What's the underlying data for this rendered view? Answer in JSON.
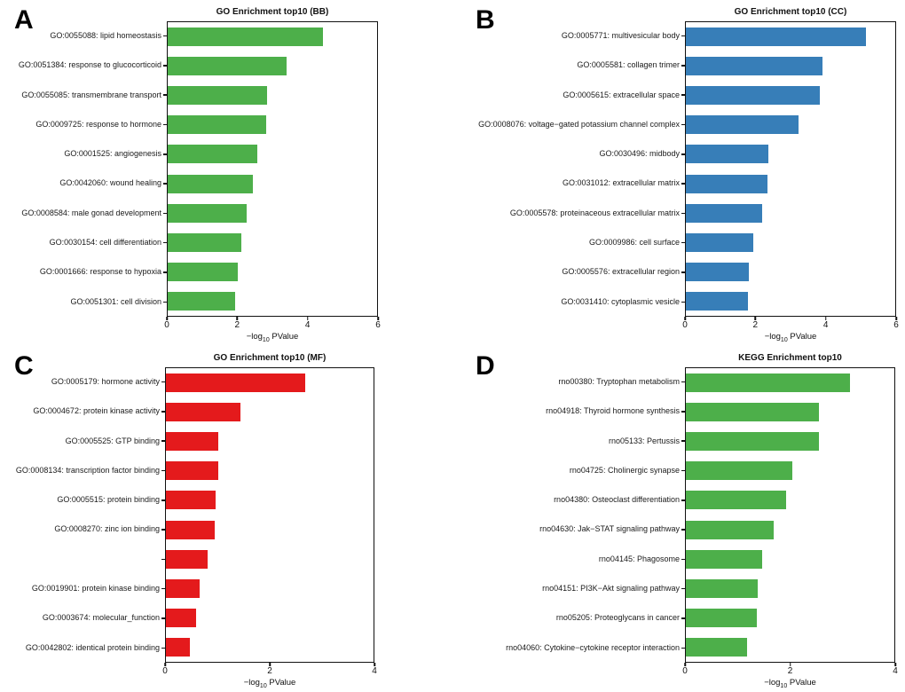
{
  "chart_data": [
    {
      "type": "bar",
      "letter": "A",
      "title": "GO Enrichment top10 (BB)",
      "color": "#4daf4a",
      "orientation": "horizontal",
      "xlim": [
        0,
        6
      ],
      "xticks": [
        0,
        2,
        4,
        6
      ],
      "grid": false,
      "legend": "none",
      "xlabel": {
        "pre": "−log",
        "sub": "10",
        "post": " PValue"
      },
      "categories": [
        "GO:0055088: lipid homeostasis",
        "GO:0051384: response to glucocorticoid",
        "GO:0055085: transmembrane transport",
        "GO:0009725: response to hormone",
        "GO:0001525: angiogenesis",
        "GO:0042060: wound healing",
        "GO:0008584: male gonad development",
        "GO:0030154: cell differentiation",
        "GO:0001666: response to hypoxia",
        "GO:0051301: cell division"
      ],
      "values": [
        4.45,
        3.4,
        2.86,
        2.83,
        2.58,
        2.44,
        2.25,
        2.11,
        2.0,
        1.92
      ]
    },
    {
      "type": "bar",
      "letter": "B",
      "title": "GO Enrichment top10 (CC)",
      "color": "#377eb8",
      "orientation": "horizontal",
      "xlim": [
        0,
        6
      ],
      "xticks": [
        0,
        2,
        4,
        6
      ],
      "grid": false,
      "legend": "none",
      "xlabel": {
        "pre": "−log",
        "sub": "10",
        "post": " PValue"
      },
      "categories": [
        "GO:0005771: multivesicular body",
        "GO:0005581: collagen trimer",
        "GO:0005615: extracellular space",
        "GO:0008076: voltage−gated potassium channel complex",
        "GO:0030496: midbody",
        "GO:0031012: extracellular matrix",
        "GO:0005578: proteinaceous extracellular matrix",
        "GO:0009986: cell surface",
        "GO:0005576: extracellular region",
        "GO:0031410: cytoplasmic vesicle"
      ],
      "values": [
        5.15,
        3.92,
        3.84,
        3.22,
        2.37,
        2.34,
        2.18,
        1.93,
        1.8,
        1.78
      ]
    },
    {
      "type": "bar",
      "letter": "C",
      "title": "GO Enrichment top10 (MF)",
      "color": "#e41a1c",
      "orientation": "horizontal",
      "xlim": [
        0,
        4
      ],
      "xticks": [
        0,
        2,
        4
      ],
      "grid": false,
      "legend": "none",
      "xlabel": {
        "pre": "−log",
        "sub": "10",
        "post": " PValue"
      },
      "categories": [
        "GO:0005179: hormone activity",
        "GO:0004672: protein kinase activity",
        "GO:0005525: GTP binding",
        "GO:0008134: transcription factor binding",
        "GO:0005515: protein binding",
        "GO:0008270: zinc ion binding",
        "",
        "GO:0019901: protein kinase binding",
        "GO:0003674: molecular_function",
        "GO:0042802: identical protein binding"
      ],
      "values": [
        2.68,
        1.44,
        1.0,
        1.0,
        0.96,
        0.94,
        0.81,
        0.65,
        0.58,
        0.47
      ]
    },
    {
      "type": "bar",
      "letter": "D",
      "title": "KEGG Enrichment top10",
      "color": "#4daf4a",
      "orientation": "horizontal",
      "xlim": [
        0,
        4
      ],
      "xticks": [
        0,
        2,
        4
      ],
      "grid": false,
      "legend": "none",
      "xlabel": {
        "pre": "−log",
        "sub": "10",
        "post": " PValue"
      },
      "categories": [
        "rno00380: Tryptophan metabolism",
        "rno04918: Thyroid hormone synthesis",
        "rno05133: Pertussis",
        "rno04725: Cholinergic synapse",
        "rno04380: Osteoclast differentiation",
        "rno04630: Jak−STAT signaling pathway",
        "rno04145: Phagosome",
        "rno04151: PI3K−Akt signaling pathway",
        "rno05205: Proteoglycans in cancer",
        "rno04060: Cytokine−cytokine receptor interaction"
      ],
      "values": [
        3.15,
        2.56,
        2.56,
        2.05,
        1.93,
        1.69,
        1.46,
        1.38,
        1.36,
        1.17
      ]
    }
  ]
}
